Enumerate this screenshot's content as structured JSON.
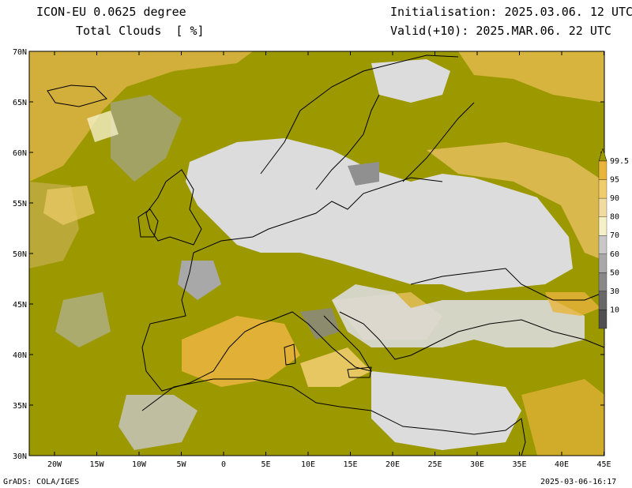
{
  "header": {
    "model": "ICON-EU 0.0625 degree",
    "variable": "Total Clouds  [ %]",
    "initialisation": "Initialisation: 2025.03.06. 12 UTC",
    "valid": "Valid(+10): 2025.MAR.06. 22 UTC"
  },
  "axes": {
    "lat_labels": [
      "70N",
      "65N",
      "60N",
      "55N",
      "50N",
      "45N",
      "40N",
      "35N",
      "30N"
    ],
    "lon_labels": [
      "20W",
      "15W",
      "10W",
      "5W",
      "0",
      "5E",
      "10E",
      "15E",
      "20E",
      "25E",
      "30E",
      "35E",
      "40E",
      "45E"
    ]
  },
  "colorbar": {
    "labels": [
      "99.5",
      "95",
      "90",
      "80",
      "70",
      "60",
      "50",
      "30",
      "10"
    ],
    "colors": [
      "#9c9800",
      "#e8b43c",
      "#f0cc6c",
      "#f0dca0",
      "#f4f0c8",
      "#c8c8c8",
      "#a8a8a8",
      "#888888",
      "#686868",
      "#505050"
    ]
  },
  "palette": {
    "water_clear": "#ffffff",
    "land_clear": "#dcdcdc",
    "full_cloud": "#9c9800"
  },
  "footer": {
    "left": "GrADS: COLA/IGES",
    "right": "2025-03-06-16:17"
  }
}
